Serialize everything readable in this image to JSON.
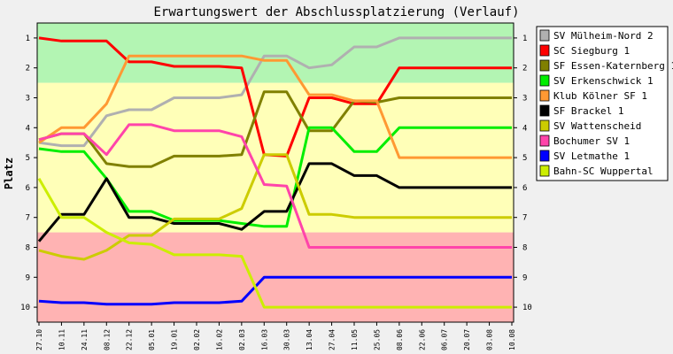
{
  "chart_data": {
    "type": "line",
    "title": "Erwartungswert der Abschlussplatzierung (Verlauf)",
    "ylabel": "Platz",
    "xlabel": "",
    "y_inverted": true,
    "ylim": [
      0.5,
      10.5
    ],
    "y_ticks": [
      1,
      2,
      3,
      4,
      5,
      6,
      7,
      8,
      9,
      10
    ],
    "zones": [
      {
        "from": 0.5,
        "to": 2.5,
        "color": "#b3f5b3"
      },
      {
        "from": 2.5,
        "to": 7.5,
        "color": "#ffffb8"
      },
      {
        "from": 7.5,
        "to": 10.5,
        "color": "#ffb3b3"
      }
    ],
    "categories": [
      "27.10",
      "10.11",
      "24.11",
      "08.12",
      "22.12",
      "05.01",
      "19.01",
      "02.02",
      "16.02",
      "02.03",
      "16.03",
      "30.03",
      "13.04",
      "27.04",
      "11.05",
      "25.05",
      "08.06",
      "22.06",
      "06.07",
      "20.07",
      "03.08",
      "10.08"
    ],
    "legend_position": "right",
    "series": [
      {
        "name": "SV Mülheim-Nord 2",
        "color": "#b0b0b0",
        "values": [
          4.5,
          4.6,
          4.6,
          3.6,
          3.4,
          3.4,
          3.0,
          3.0,
          3.0,
          2.9,
          1.6,
          1.6,
          2.0,
          1.9,
          1.3,
          1.3,
          1.0,
          1.0,
          1.0,
          1.0,
          1.0,
          1.0
        ]
      },
      {
        "name": "SC Siegburg 1",
        "color": "#ff0000",
        "values": [
          1.0,
          1.1,
          1.1,
          1.1,
          1.8,
          1.8,
          1.95,
          1.95,
          1.95,
          2.0,
          4.9,
          4.95,
          3.0,
          3.0,
          3.2,
          3.2,
          2.0,
          2.0,
          2.0,
          2.0,
          2.0,
          2.0
        ]
      },
      {
        "name": "SF Essen-Katernberg 1",
        "color": "#808000",
        "values": [
          4.4,
          4.2,
          4.2,
          5.2,
          5.3,
          5.3,
          4.95,
          4.95,
          4.95,
          4.9,
          2.8,
          2.8,
          4.1,
          4.1,
          3.1,
          3.15,
          3.0,
          3.0,
          3.0,
          3.0,
          3.0,
          3.0
        ]
      },
      {
        "name": "SV Erkenschwick 1",
        "color": "#00ee00",
        "values": [
          4.7,
          4.8,
          4.8,
          5.7,
          6.8,
          6.8,
          7.1,
          7.1,
          7.1,
          7.2,
          7.3,
          7.3,
          4.0,
          4.0,
          4.8,
          4.8,
          4.0,
          4.0,
          4.0,
          4.0,
          4.0,
          4.0
        ]
      },
      {
        "name": "Klub Kölner SF 1",
        "color": "#ff9933",
        "values": [
          4.5,
          4.0,
          4.0,
          3.2,
          1.6,
          1.6,
          1.6,
          1.6,
          1.6,
          1.6,
          1.75,
          1.75,
          2.9,
          2.9,
          3.1,
          3.1,
          5.0,
          5.0,
          5.0,
          5.0,
          5.0,
          5.0
        ]
      },
      {
        "name": "SF Brackel 1",
        "color": "#000000",
        "values": [
          7.8,
          6.9,
          6.9,
          5.7,
          7.0,
          7.0,
          7.2,
          7.2,
          7.2,
          7.4,
          6.8,
          6.8,
          5.2,
          5.2,
          5.6,
          5.6,
          6.0,
          6.0,
          6.0,
          6.0,
          6.0,
          6.0
        ]
      },
      {
        "name": "SV Wattenscheid",
        "color": "#cccc00",
        "values": [
          8.1,
          8.3,
          8.4,
          8.1,
          7.6,
          7.6,
          7.05,
          7.05,
          7.05,
          6.7,
          4.9,
          4.9,
          6.9,
          6.9,
          7.0,
          7.0,
          7.0,
          7.0,
          7.0,
          7.0,
          7.0,
          7.0
        ]
      },
      {
        "name": "Bochumer SV 1",
        "color": "#ff44aa",
        "values": [
          4.4,
          4.2,
          4.2,
          4.9,
          3.9,
          3.9,
          4.1,
          4.1,
          4.1,
          4.3,
          5.9,
          5.95,
          8.0,
          8.0,
          8.0,
          8.0,
          8.0,
          8.0,
          8.0,
          8.0,
          8.0,
          8.0
        ]
      },
      {
        "name": "SV Letmathe 1",
        "color": "#0000ff",
        "values": [
          9.8,
          9.85,
          9.85,
          9.9,
          9.9,
          9.9,
          9.85,
          9.85,
          9.85,
          9.8,
          9.0,
          9.0,
          9.0,
          9.0,
          9.0,
          9.0,
          9.0,
          9.0,
          9.0,
          9.0,
          9.0,
          9.0
        ]
      },
      {
        "name": "Bahn-SC Wuppertal",
        "color": "#ccee00",
        "values": [
          5.7,
          7.0,
          7.0,
          7.5,
          7.85,
          7.9,
          8.25,
          8.25,
          8.25,
          8.3,
          10.0,
          10.0,
          10.0,
          10.0,
          10.0,
          10.0,
          10.0,
          10.0,
          10.0,
          10.0,
          10.0,
          10.0
        ]
      }
    ]
  }
}
